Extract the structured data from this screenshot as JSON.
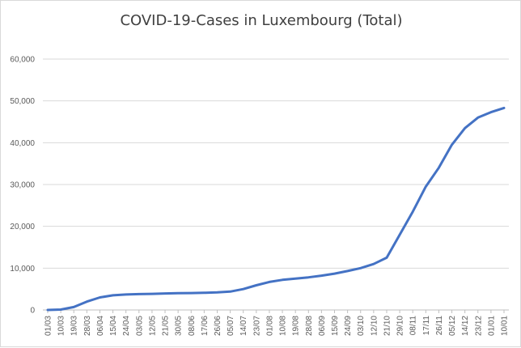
{
  "chart_data": {
    "type": "line",
    "title": "COVID-19-Cases in Luxembourg (Total)",
    "xlabel": "",
    "ylabel": "",
    "ylim": [
      0,
      60000
    ],
    "yticks": [
      0,
      10000,
      20000,
      30000,
      40000,
      50000,
      60000
    ],
    "ytick_labels": [
      "0",
      "10,000",
      "20,000",
      "30,000",
      "40,000",
      "50,000",
      "60,000"
    ],
    "grid": true,
    "legend": "none",
    "line_color": "#4472c4",
    "categories": [
      "01/03",
      "10/03",
      "19/03",
      "28/03",
      "06/04",
      "15/04",
      "24/04",
      "03/05",
      "12/05",
      "21/05",
      "30/05",
      "08/06",
      "17/06",
      "26/06",
      "05/07",
      "14/07",
      "23/07",
      "01/08",
      "10/08",
      "19/08",
      "28/08",
      "06/09",
      "15/09",
      "24/09",
      "03/10",
      "12/10",
      "21/10",
      "29/10",
      "08/11",
      "17/11",
      "26/11",
      "05/12",
      "14/12",
      "23/12",
      "01/01",
      "10/01"
    ],
    "series": [
      {
        "values": [
          0,
          100,
          700,
          2000,
          3000,
          3500,
          3700,
          3800,
          3850,
          3950,
          4000,
          4050,
          4100,
          4200,
          4400,
          5000,
          5900,
          6700,
          7200,
          7500,
          7800,
          8200,
          8700,
          9300,
          10000,
          11000,
          12500,
          18000,
          23500,
          29500,
          34000,
          39500,
          43500,
          46000,
          47300,
          48300
        ]
      }
    ]
  }
}
